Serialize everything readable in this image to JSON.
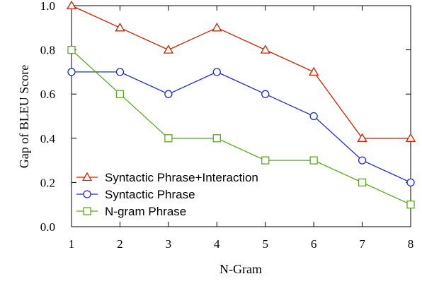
{
  "chart_data": {
    "type": "line",
    "x": [
      1,
      2,
      3,
      4,
      5,
      6,
      7,
      8
    ],
    "xlabel": "N-Gram",
    "ylabel": "Gap of BLEU Score",
    "xlim": [
      1,
      8
    ],
    "ylim": [
      0,
      1.0
    ],
    "xticks": [
      "1",
      "2",
      "3",
      "4",
      "5",
      "6",
      "7",
      "8"
    ],
    "yticks": [
      "0.0",
      "0.2",
      "0.4",
      "0.6",
      "0.8",
      "1.0"
    ],
    "grid": false,
    "legend_position": "bottom-left",
    "series": [
      {
        "name": "Syntactic Phrase+Interaction",
        "values": [
          1.0,
          0.9,
          0.8,
          0.9,
          0.8,
          0.7,
          0.4,
          0.4
        ],
        "color": "#cc2200",
        "marker": "triangle"
      },
      {
        "name": "Syntactic Phrase",
        "values": [
          0.7,
          0.7,
          0.6,
          0.7,
          0.6,
          0.5,
          0.3,
          0.2
        ],
        "color": "#1a2bd6",
        "marker": "circle"
      },
      {
        "name": "N-gram Phrase",
        "values": [
          0.8,
          0.6,
          0.4,
          0.4,
          0.3,
          0.3,
          0.2,
          0.1
        ],
        "color": "#5aaa1e",
        "marker": "square"
      }
    ]
  }
}
